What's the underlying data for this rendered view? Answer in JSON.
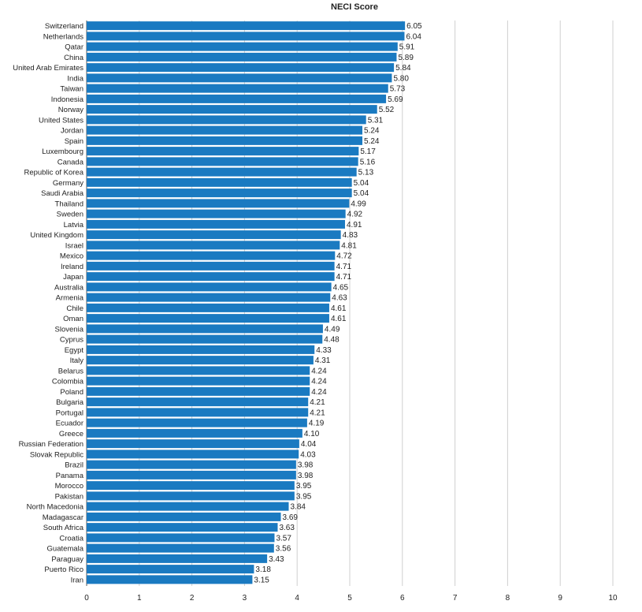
{
  "chart_data": {
    "type": "bar",
    "orientation": "horizontal",
    "title": "NECI Score",
    "xlabel": "",
    "ylabel": "",
    "xlim": [
      0,
      10
    ],
    "xticks": [
      "0",
      "1",
      "2",
      "3",
      "4",
      "5",
      "6",
      "7",
      "8",
      "9",
      "10"
    ],
    "grid": true,
    "bar_color": "#1a7ac1",
    "categories": [
      "Switzerland",
      "Netherlands",
      "Qatar",
      "China",
      "United Arab Emirates",
      "India",
      "Taiwan",
      "Indonesia",
      "Norway",
      "United States",
      "Jordan",
      "Spain",
      "Luxembourg",
      "Canada",
      "Republic of Korea",
      "Germany",
      "Saudi Arabia",
      "Thailand",
      "Sweden",
      "Latvia",
      "United Kingdom",
      "Israel",
      "Mexico",
      "Ireland",
      "Japan",
      "Australia",
      "Armenia",
      "Chile",
      "Oman",
      "Slovenia",
      "Cyprus",
      "Egypt",
      "Italy",
      "Belarus",
      "Colombia",
      "Poland",
      "Bulgaria",
      "Portugal",
      "Ecuador",
      "Greece",
      "Russian Federation",
      "Slovak Republic",
      "Brazil",
      "Panama",
      "Morocco",
      "Pakistan",
      "North Macedonia",
      "Madagascar",
      "South Africa",
      "Croatia",
      "Guatemala",
      "Paraguay",
      "Puerto Rico",
      "Iran"
    ],
    "values": [
      6.05,
      6.04,
      5.91,
      5.89,
      5.84,
      5.8,
      5.73,
      5.69,
      5.52,
      5.31,
      5.24,
      5.24,
      5.17,
      5.16,
      5.13,
      5.04,
      5.04,
      4.99,
      4.92,
      4.91,
      4.83,
      4.81,
      4.72,
      4.71,
      4.71,
      4.65,
      4.63,
      4.61,
      4.61,
      4.49,
      4.48,
      4.33,
      4.31,
      4.24,
      4.24,
      4.24,
      4.21,
      4.21,
      4.19,
      4.1,
      4.04,
      4.03,
      3.98,
      3.98,
      3.95,
      3.95,
      3.84,
      3.69,
      3.63,
      3.57,
      3.56,
      3.43,
      3.18,
      3.15
    ],
    "value_labels": [
      "6.05",
      "6.04",
      "5.91",
      "5.89",
      "5.84",
      "5.80",
      "5.73",
      "5.69",
      "5.52",
      "5.31",
      "5.24",
      "5.24",
      "5.17",
      "5.16",
      "5.13",
      "5.04",
      "5.04",
      "4.99",
      "4.92",
      "4.91",
      "4.83",
      "4.81",
      "4.72",
      "4.71",
      "4.71",
      "4.65",
      "4.63",
      "4.61",
      "4.61",
      "4.49",
      "4.48",
      "4.33",
      "4.31",
      "4.24",
      "4.24",
      "4.24",
      "4.21",
      "4.21",
      "4.19",
      "4.10",
      "4.04",
      "4.03",
      "3.98",
      "3.98",
      "3.95",
      "3.95",
      "3.84",
      "3.69",
      "3.63",
      "3.57",
      "3.56",
      "3.43",
      "3.18",
      "3.15"
    ]
  }
}
